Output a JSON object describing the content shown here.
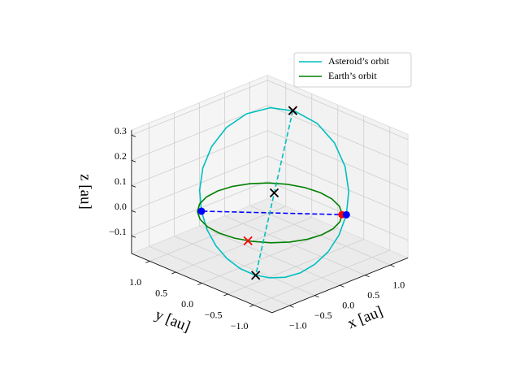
{
  "chart_data": {
    "type": "line3d",
    "xlabel": "x [au]",
    "ylabel": "y [au]",
    "zlabel": "z [au]",
    "xlim": [
      -1.35,
      1.35
    ],
    "ylim": [
      -1.35,
      1.35
    ],
    "zlim": [
      -0.17,
      0.32
    ],
    "xticks": [
      {
        "value": -1.0,
        "label": "−1.0"
      },
      {
        "value": -0.5,
        "label": "−0.5"
      },
      {
        "value": 0.0,
        "label": "0.0"
      },
      {
        "value": 0.5,
        "label": "0.5"
      },
      {
        "value": 1.0,
        "label": "1.0"
      }
    ],
    "yticks": [
      {
        "value": -1.0,
        "label": "−1.0"
      },
      {
        "value": -0.5,
        "label": "−0.5"
      },
      {
        "value": 0.0,
        "label": "0.0"
      },
      {
        "value": 0.5,
        "label": "0.5"
      },
      {
        "value": 1.0,
        "label": "1.0"
      }
    ],
    "zticks": [
      {
        "value": -0.1,
        "label": "−0.1"
      },
      {
        "value": 0.0,
        "label": "0.0"
      },
      {
        "value": 0.1,
        "label": "0.1"
      },
      {
        "value": 0.2,
        "label": "0.2"
      },
      {
        "value": 0.3,
        "label": "0.3"
      }
    ],
    "grid": true,
    "legend": "upper right",
    "series": [
      {
        "name": "Asteroid’s orbit",
        "color": "#00bfbf",
        "x": [
          0.732,
          0.96,
          1.141,
          1.244,
          1.245,
          1.134,
          0.922,
          0.637,
          0.322,
          0.012,
          -0.263,
          -0.487,
          -0.653,
          -0.761,
          -0.814,
          -0.817,
          -0.775,
          -0.692,
          -0.571,
          -0.414,
          -0.226,
          -0.009,
          0.229,
          0.481,
          0.732
        ],
        "y": [
          -0.764,
          -0.589,
          -0.343,
          -0.039,
          0.294,
          0.615,
          0.884,
          1.065,
          1.146,
          1.129,
          1.032,
          0.876,
          0.681,
          0.466,
          0.245,
          0.026,
          -0.183,
          -0.376,
          -0.548,
          -0.693,
          -0.805,
          -0.876,
          -0.9,
          -0.865,
          -0.764
        ],
        "z": [
          0,
          0.059,
          0.122,
          0.181,
          0.229,
          0.259,
          0.266,
          0.249,
          0.213,
          0.164,
          0.109,
          0.053,
          0,
          -0.047,
          -0.087,
          -0.119,
          -0.143,
          -0.158,
          -0.164,
          -0.162,
          -0.15,
          -0.127,
          -0.095,
          -0.052,
          0
        ]
      },
      {
        "name": "Earth’s orbit",
        "color": "#008000",
        "x": [
          1,
          0.966,
          0.866,
          0.707,
          0.5,
          0.259,
          0,
          -0.259,
          -0.5,
          -0.707,
          -0.866,
          -0.966,
          -1,
          -0.966,
          -0.866,
          -0.707,
          -0.5,
          -0.259,
          0,
          0.259,
          0.5,
          0.707,
          0.866,
          0.966,
          1
        ],
        "y": [
          0,
          0.259,
          0.5,
          0.707,
          0.866,
          0.966,
          1,
          0.966,
          0.866,
          0.707,
          0.5,
          0.259,
          0,
          -0.259,
          -0.5,
          -0.707,
          -0.866,
          -0.966,
          -1,
          -0.966,
          -0.866,
          -0.707,
          -0.5,
          -0.259,
          0
        ],
        "z": [
          0,
          0,
          0,
          0,
          0,
          0,
          0,
          0,
          0,
          0,
          0,
          0,
          0,
          0,
          0,
          0,
          0,
          0,
          0,
          0,
          0,
          0,
          0,
          0,
          0
        ]
      }
    ],
    "segments": [
      {
        "color": "#0000ff",
        "style": "dashed",
        "x": [
          0.732,
          -0.653
        ],
        "y": [
          -0.764,
          0.681
        ],
        "z": [
          0,
          0
        ]
      },
      {
        "color": "#00bfbf",
        "style": "dashed",
        "x": [
          1.12,
          -0.683
        ],
        "y": [
          0.641,
          -0.391
        ],
        "z": [
          0.26,
          -0.159
        ]
      }
    ],
    "points": [
      {
        "color": "#ff0000",
        "marker": "o",
        "x": [
          0.69
        ],
        "y": [
          -0.72
        ],
        "z": [
          0
        ]
      },
      {
        "color": "#0000ff",
        "marker": "o",
        "x": [
          0.732,
          -0.653
        ],
        "y": [
          -0.764,
          0.681
        ],
        "z": [
          0,
          0
        ]
      },
      {
        "color": "#ff0000",
        "marker": "x",
        "x": [
          1.12,
          -0.894
        ],
        "y": [
          0.641,
          -0.447
        ],
        "z": [
          0.26,
          0
        ]
      },
      {
        "color": "#000000",
        "marker": "x",
        "x": [
          1.12,
          -0.683,
          0.218
        ],
        "y": [
          0.641,
          -0.391,
          0.125
        ],
        "z": [
          0.26,
          -0.159,
          0.051
        ]
      }
    ]
  }
}
